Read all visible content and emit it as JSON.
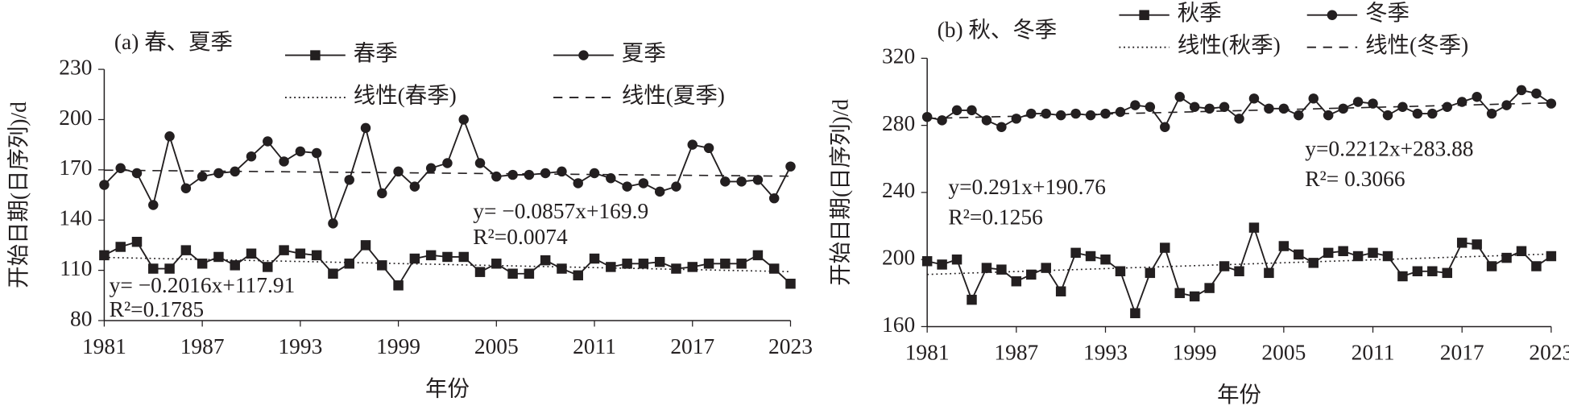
{
  "chart_data": [
    {
      "type": "line",
      "title": "(a) 春、夏季",
      "y_label": "开始日期(日序列)/d",
      "x_label": "年份",
      "x": [
        1981,
        1982,
        1983,
        1984,
        1985,
        1986,
        1987,
        1988,
        1989,
        1990,
        1991,
        1992,
        1993,
        1994,
        1995,
        1996,
        1997,
        1998,
        1999,
        2000,
        2001,
        2002,
        2003,
        2004,
        2005,
        2006,
        2007,
        2008,
        2009,
        2010,
        2011,
        2012,
        2013,
        2014,
        2015,
        2016,
        2017,
        2018,
        2019,
        2020,
        2021,
        2022,
        2023
      ],
      "xlim": [
        1981,
        2023
      ],
      "xticks": [
        1981,
        1987,
        1993,
        1999,
        2005,
        2011,
        2017,
        2023
      ],
      "ylim": [
        80,
        230
      ],
      "yticks": [
        80,
        110,
        140,
        170,
        200,
        230
      ],
      "series": [
        {
          "name": "春季",
          "color": "#231f20",
          "marker": "square",
          "style": "solid",
          "values": [
            119,
            124,
            127,
            111,
            111,
            122,
            114,
            118,
            113,
            120,
            112,
            122,
            120,
            119,
            108,
            114,
            125,
            113,
            101,
            117,
            119,
            118,
            118,
            109,
            114,
            108,
            108,
            116,
            111,
            107,
            117,
            112,
            114,
            114,
            115,
            111,
            112,
            114,
            114,
            114,
            119,
            111,
            102
          ]
        },
        {
          "name": "夏季",
          "color": "#231f20",
          "marker": "circle",
          "style": "solid",
          "values": [
            161,
            171,
            168,
            149,
            190,
            159,
            166,
            168,
            169,
            178,
            187,
            175,
            181,
            180,
            138,
            164,
            195,
            156,
            169,
            160,
            171,
            174,
            200,
            174,
            166,
            167,
            167,
            168,
            169,
            162,
            168,
            165,
            160,
            162,
            157,
            160,
            185,
            183,
            163,
            163,
            164,
            153,
            172
          ]
        },
        {
          "name": "线性(春季)",
          "color": "#231f20",
          "marker": "none",
          "style": "dotted",
          "x": [
            1981,
            2023
          ],
          "values": [
            117.7,
            109.2
          ]
        },
        {
          "name": "线性(夏季)",
          "color": "#231f20",
          "marker": "none",
          "style": "dashed",
          "x": [
            1981,
            2023
          ],
          "values": [
            169.8,
            166.2
          ]
        }
      ],
      "annotations": [
        "y= −0.0857x+169.9",
        "R²=0.0074",
        "y= −0.2016x+117.91",
        "R²=0.1785"
      ]
    },
    {
      "type": "line",
      "title": "(b) 秋、冬季",
      "y_label": "开始日期(日序列)/d",
      "x_label": "年份",
      "x": [
        1981,
        1982,
        1983,
        1984,
        1985,
        1986,
        1987,
        1988,
        1989,
        1990,
        1991,
        1992,
        1993,
        1994,
        1995,
        1996,
        1997,
        1998,
        1999,
        2000,
        2001,
        2002,
        2003,
        2004,
        2005,
        2006,
        2007,
        2008,
        2009,
        2010,
        2011,
        2012,
        2013,
        2014,
        2015,
        2016,
        2017,
        2018,
        2019,
        2020,
        2021,
        2022,
        2023
      ],
      "xlim": [
        1981,
        2023
      ],
      "xticks": [
        1981,
        1987,
        1993,
        1999,
        2005,
        2011,
        2017,
        2023
      ],
      "ylim": [
        160,
        320
      ],
      "yticks": [
        160,
        200,
        240,
        280,
        320
      ],
      "series": [
        {
          "name": "秋季",
          "color": "#231f20",
          "marker": "square",
          "style": "solid",
          "values": [
            199,
            197,
            200,
            176,
            195,
            194,
            187,
            191,
            195,
            181,
            204,
            202,
            200,
            193,
            168,
            192,
            207,
            180,
            178,
            183,
            196,
            193,
            219,
            192,
            208,
            203,
            198,
            204,
            205,
            202,
            204,
            202,
            190,
            193,
            193,
            192,
            210,
            209,
            196,
            201,
            205,
            196,
            202
          ]
        },
        {
          "name": "冬季",
          "color": "#231f20",
          "marker": "circle",
          "style": "solid",
          "values": [
            285,
            283,
            289,
            289,
            283,
            279,
            284,
            287,
            287,
            286,
            287,
            286,
            287,
            288,
            292,
            291,
            279,
            297,
            291,
            290,
            291,
            284,
            296,
            290,
            290,
            286,
            296,
            286,
            290,
            294,
            293,
            286,
            291,
            287,
            287,
            291,
            294,
            297,
            287,
            292,
            301,
            299,
            293
          ]
        },
        {
          "name": "线性(秋季)",
          "color": "#231f20",
          "marker": "none",
          "style": "dotted",
          "x": [
            1981,
            2023
          ],
          "values": [
            191.1,
            203.3
          ]
        },
        {
          "name": "线性(冬季)",
          "color": "#231f20",
          "marker": "none",
          "style": "dashed",
          "x": [
            1981,
            2023
          ],
          "values": [
            284.1,
            293.4
          ]
        }
      ],
      "annotations": [
        "y=0.291x+190.76",
        "R²=0.1256",
        "y=0.2212x+283.88",
        "R²= 0.3066"
      ]
    }
  ]
}
